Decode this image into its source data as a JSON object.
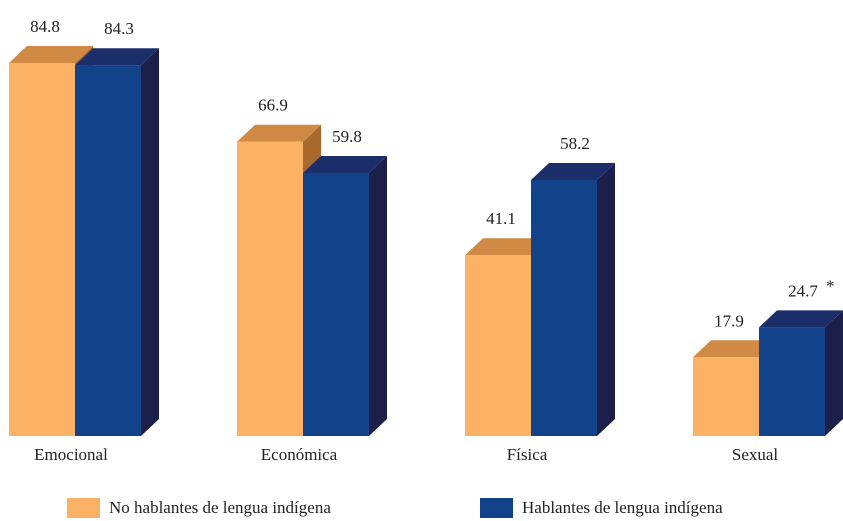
{
  "chart_data": {
    "type": "bar",
    "categories": [
      "Emocional",
      "Económica",
      "Física",
      "Sexual"
    ],
    "series": [
      {
        "name": "No hablantes de lengua indígena",
        "values": [
          84.8,
          66.9,
          41.1,
          17.9
        ],
        "labels": [
          "84.8",
          "66.9",
          "41.1",
          "17.9"
        ],
        "color": "#fbb264"
      },
      {
        "name": "Hablantes de lengua indígena",
        "values": [
          84.3,
          59.8,
          58.2,
          24.7
        ],
        "labels": [
          "84.3",
          "59.8",
          "58.2",
          "24.7"
        ],
        "color": "#11428a"
      }
    ],
    "annotations": [
      {
        "series": 1,
        "category": 3,
        "text": "*"
      }
    ],
    "ylim": [
      0,
      84.8
    ],
    "grid": false,
    "legend_position": "bottom",
    "style": "3d"
  }
}
